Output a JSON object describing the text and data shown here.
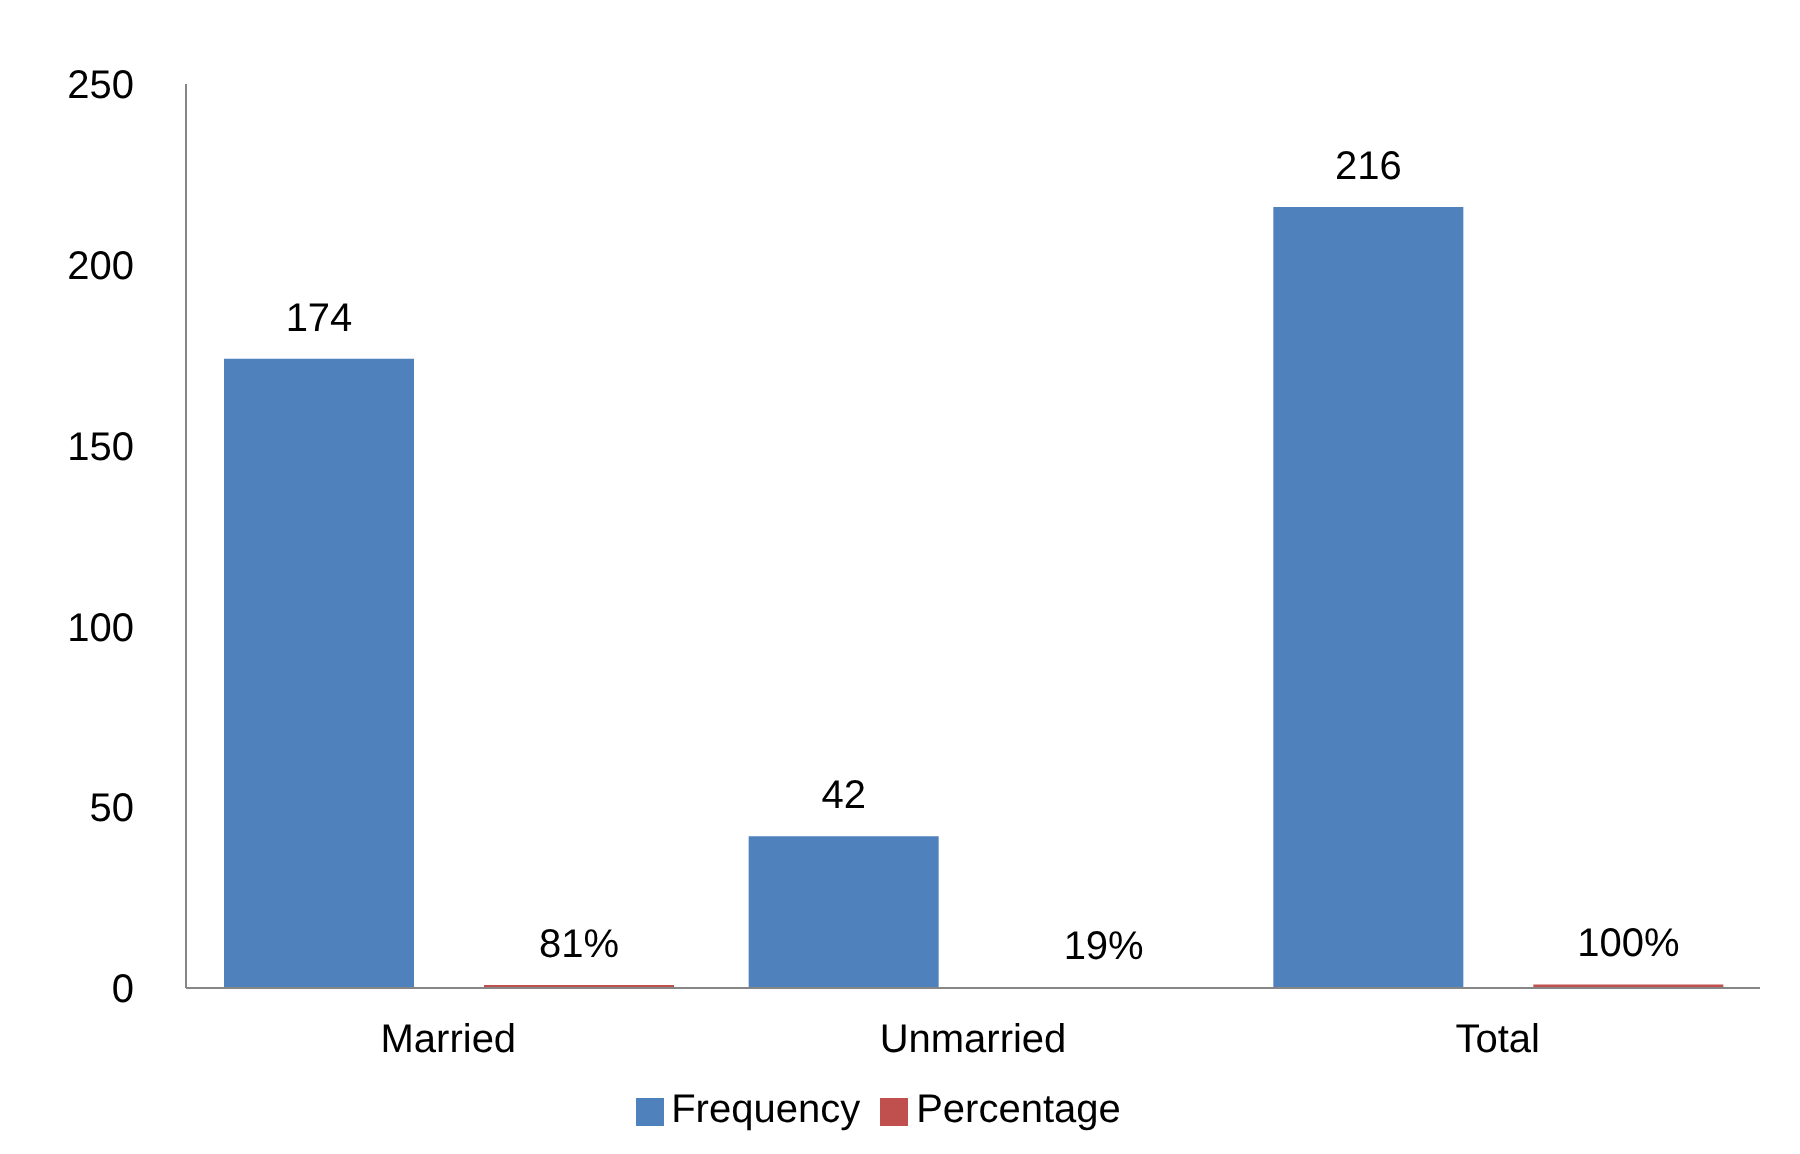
{
  "chart_data": {
    "type": "bar",
    "categories": [
      "Married",
      "Unmarried",
      "Total"
    ],
    "series": [
      {
        "name": "Frequency",
        "color": "#4f81bd",
        "values": [
          174,
          42,
          216
        ],
        "value_labels": [
          "174",
          "42",
          "216"
        ]
      },
      {
        "name": "Percentage",
        "color": "#c0504d",
        "values": [
          0.81,
          0.19,
          1
        ],
        "value_labels": [
          "81%",
          "19%",
          "100%"
        ]
      }
    ],
    "ylim": [
      0,
      250
    ],
    "yticks": [
      0,
      50,
      100,
      150,
      200,
      250
    ],
    "grid": false,
    "legend": "bottom"
  }
}
